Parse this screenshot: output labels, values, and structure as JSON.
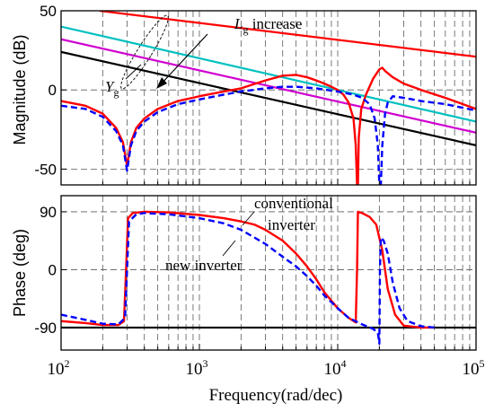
{
  "figure": {
    "xlabel": "Frequency(rad/dec)"
  },
  "chart_data": [
    {
      "type": "line",
      "id": "magnitude",
      "xscale": "log",
      "xlim": [
        100,
        100000
      ],
      "ylim": [
        -60,
        50
      ],
      "ylabel": "Magnitude (dB)",
      "yticks": [
        -50,
        0,
        50
      ],
      "xticks": [
        100,
        1000,
        10000,
        100000
      ],
      "xtick_labels": [
        {
          "base": "10",
          "exp": "2"
        },
        {
          "base": "10",
          "exp": "3"
        },
        {
          "base": "10",
          "exp": "4"
        },
        {
          "base": "10",
          "exp": "5"
        }
      ],
      "grid": true,
      "series": [
        {
          "color": "#ff0000",
          "width": 2.2,
          "dash": "",
          "points": [
            [
              190,
              50
            ],
            [
              100000,
              21
            ]
          ]
        },
        {
          "color": "#00c0c0",
          "width": 2.2,
          "dash": "",
          "points": [
            [
              100,
              40
            ],
            [
              100000,
              -20
            ]
          ]
        },
        {
          "color": "#d000d0",
          "width": 2.2,
          "dash": "",
          "points": [
            [
              100,
              32
            ],
            [
              100000,
              -27
            ]
          ]
        },
        {
          "color": "#000000",
          "width": 2.2,
          "dash": "",
          "points": [
            [
              100,
              24
            ],
            [
              100000,
              -35
            ]
          ]
        },
        {
          "color": "#ff0000",
          "width": 2.4,
          "dash": "",
          "points": [
            [
              100,
              -7
            ],
            [
              150,
              -10
            ],
            [
              200,
              -15
            ],
            [
              250,
              -24
            ],
            [
              280,
              -33
            ],
            [
              300,
              -48
            ],
            [
              320,
              -33
            ],
            [
              350,
              -24
            ],
            [
              400,
              -18
            ],
            [
              500,
              -12
            ],
            [
              700,
              -7
            ],
            [
              1000,
              -4
            ],
            [
              1500,
              -1
            ],
            [
              2000,
              1
            ],
            [
              3000,
              6
            ],
            [
              4000,
              9
            ],
            [
              5000,
              9.5
            ],
            [
              6000,
              8
            ],
            [
              7000,
              6
            ],
            [
              8000,
              4
            ],
            [
              9000,
              2
            ],
            [
              10000,
              0
            ],
            [
              11000,
              -3
            ],
            [
              12000,
              -8
            ],
            [
              13000,
              -18
            ],
            [
              13500,
              -35
            ],
            [
              13800,
              -60
            ],
            [
              14000,
              -60
            ],
            [
              14200,
              -30
            ],
            [
              14800,
              -12
            ],
            [
              16000,
              -3
            ],
            [
              18000,
              7
            ],
            [
              20000,
              13
            ],
            [
              21000,
              14
            ],
            [
              22000,
              12
            ],
            [
              25000,
              8
            ],
            [
              30000,
              4
            ],
            [
              40000,
              0
            ],
            [
              60000,
              -5
            ],
            [
              100000,
              -12
            ]
          ]
        },
        {
          "color": "#0000ff",
          "width": 2.4,
          "dash": "7 4",
          "points": [
            [
              100,
              -10
            ],
            [
              150,
              -12
            ],
            [
              200,
              -17
            ],
            [
              250,
              -26
            ],
            [
              280,
              -35
            ],
            [
              300,
              -51
            ],
            [
              320,
              -35
            ],
            [
              350,
              -26
            ],
            [
              400,
              -20
            ],
            [
              500,
              -14
            ],
            [
              700,
              -9
            ],
            [
              1000,
              -6
            ],
            [
              1500,
              -3
            ],
            [
              2000,
              -1
            ],
            [
              3000,
              1
            ],
            [
              4000,
              2
            ],
            [
              5000,
              2
            ],
            [
              7000,
              1
            ],
            [
              10000,
              -1
            ],
            [
              13000,
              -3
            ],
            [
              15000,
              -5
            ],
            [
              17000,
              -9
            ],
            [
              18500,
              -18
            ],
            [
              19500,
              -35
            ],
            [
              20000,
              -60
            ],
            [
              20500,
              -60
            ],
            [
              21000,
              -35
            ],
            [
              22000,
              -15
            ],
            [
              23000,
              -8
            ],
            [
              25000,
              -4
            ],
            [
              30000,
              -5
            ],
            [
              40000,
              -7
            ],
            [
              60000,
              -9
            ],
            [
              100000,
              -13
            ]
          ]
        }
      ]
    },
    {
      "type": "line",
      "id": "phase",
      "xscale": "log",
      "xlim": [
        100,
        100000
      ],
      "ylim": [
        -125,
        115
      ],
      "ylabel": "Phase (deg)",
      "yticks": [
        -90,
        0,
        90
      ],
      "xticks": [
        100,
        1000,
        10000,
        100000
      ],
      "xtick_labels": [
        {
          "base": "10",
          "exp": "2"
        },
        {
          "base": "10",
          "exp": "3"
        },
        {
          "base": "10",
          "exp": "4"
        },
        {
          "base": "10",
          "exp": "5"
        }
      ],
      "grid": true,
      "series": [
        {
          "color": "#000000",
          "width": 2.2,
          "dash": "",
          "points": [
            [
              100,
              -90
            ],
            [
              100000,
              -90
            ]
          ]
        },
        {
          "color": "#ff0000",
          "width": 2.4,
          "dash": "",
          "points": [
            [
              100,
              -80
            ],
            [
              150,
              -83
            ],
            [
              200,
              -86
            ],
            [
              260,
              -86
            ],
            [
              285,
              -80
            ],
            [
              295,
              0
            ],
            [
              305,
              80
            ],
            [
              330,
              88
            ],
            [
              400,
              90
            ],
            [
              600,
              89
            ],
            [
              1000,
              85
            ],
            [
              1500,
              80
            ],
            [
              2000,
              75
            ],
            [
              2500,
              70
            ],
            [
              3000,
              62
            ],
            [
              4000,
              45
            ],
            [
              5000,
              25
            ],
            [
              6000,
              5
            ],
            [
              7000,
              -15
            ],
            [
              8000,
              -35
            ],
            [
              10000,
              -60
            ],
            [
              12000,
              -75
            ],
            [
              13500,
              -82
            ],
            [
              13800,
              0
            ],
            [
              14000,
              90
            ],
            [
              15000,
              88
            ],
            [
              17000,
              82
            ],
            [
              19000,
              70
            ],
            [
              21000,
              30
            ],
            [
              23000,
              -30
            ],
            [
              26000,
              -70
            ],
            [
              30000,
              -87
            ],
            [
              40000,
              -90
            ],
            [
              50000,
              -90
            ]
          ]
        },
        {
          "color": "#0000ff",
          "width": 2.4,
          "dash": "7 4",
          "points": [
            [
              100,
              -70
            ],
            [
              150,
              -78
            ],
            [
              200,
              -84
            ],
            [
              260,
              -85
            ],
            [
              290,
              -75
            ],
            [
              300,
              0
            ],
            [
              310,
              75
            ],
            [
              350,
              86
            ],
            [
              400,
              88
            ],
            [
              600,
              86
            ],
            [
              1000,
              80
            ],
            [
              1500,
              72
            ],
            [
              2000,
              62
            ],
            [
              3000,
              40
            ],
            [
              4000,
              20
            ],
            [
              5000,
              5
            ],
            [
              6000,
              -10
            ],
            [
              7000,
              -25
            ],
            [
              8000,
              -40
            ],
            [
              10000,
              -60
            ],
            [
              12000,
              -75
            ],
            [
              15000,
              -85
            ],
            [
              18000,
              -92
            ],
            [
              19500,
              -98
            ],
            [
              20000,
              -115
            ],
            [
              20200,
              0
            ],
            [
              20500,
              50
            ],
            [
              21500,
              45
            ],
            [
              23000,
              25
            ],
            [
              25000,
              -20
            ],
            [
              28000,
              -60
            ],
            [
              32000,
              -80
            ],
            [
              40000,
              -88
            ],
            [
              50000,
              -90
            ]
          ]
        }
      ]
    }
  ],
  "annotations": {
    "lg_symbol": "L",
    "lg_sub": "g",
    "lg_text": " increase",
    "yg_symbol": "Y",
    "yg_sub": "g",
    "conventional_line1": "conventional",
    "conventional_line2": "inverter",
    "new_inverter": "new inverter"
  }
}
